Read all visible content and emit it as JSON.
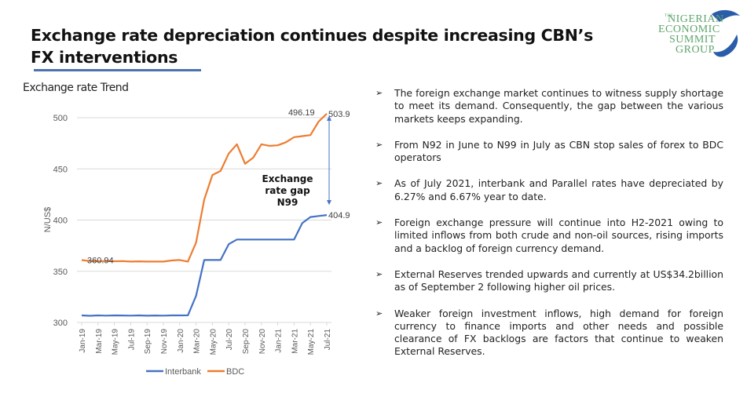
{
  "header": {
    "title_line1": "Exchange rate depreciation continues despite increasing CBN’s",
    "title_line2": "FX interventions"
  },
  "logo": {
    "small": "THE",
    "line1": "NIGERIAN",
    "line2": "ECONOMIC",
    "line3": "SUMMIT",
    "line4": "GROUP",
    "icon": "nesg-swoosh-icon",
    "color_text": "#5da56a",
    "color_swoosh": "#2a5caa"
  },
  "chart_data": {
    "type": "line",
    "title": "Exchange rate Trend",
    "xlabel": "",
    "ylabel": "N/US$",
    "ylim": [
      300,
      510
    ],
    "yticks": [
      300,
      350,
      400,
      450,
      500
    ],
    "grid": true,
    "legend_position": "bottom",
    "x": [
      "Jan-19",
      "Feb-19",
      "Mar-19",
      "Apr-19",
      "May-19",
      "Jun-19",
      "Jul-19",
      "Aug-19",
      "Sep-19",
      "Oct-19",
      "Nov-19",
      "Dec-19",
      "Jan-20",
      "Feb-20",
      "Mar-20",
      "Apr-20",
      "May-20",
      "Jun-20",
      "Jul-20",
      "Aug-20",
      "Sep-20",
      "Oct-20",
      "Nov-20",
      "Dec-20",
      "Jan-21",
      "Feb-21",
      "Mar-21",
      "Apr-21",
      "May-21",
      "Jun-21",
      "Jul-21"
    ],
    "xtick_labels": [
      "Jan-19",
      "Mar-19",
      "May-19",
      "Jul-19",
      "Sep-19",
      "Nov-19",
      "Jan-20",
      "Mar-20",
      "May-20",
      "Jul-20",
      "Sep-20",
      "Nov-20",
      "Jan-21",
      "Mar-21",
      "May-21",
      "Jul-21"
    ],
    "series": [
      {
        "name": "Interbank",
        "color": "#4472c4",
        "values": [
          306.9,
          306.5,
          306.9,
          306.7,
          306.9,
          306.8,
          306.7,
          306.9,
          306.6,
          306.8,
          306.7,
          306.9,
          306.9,
          307.0,
          326.0,
          361.0,
          361.0,
          361.0,
          376.5,
          381.0,
          381.0,
          381.0,
          381.0,
          381.0,
          381.0,
          381.0,
          381.0,
          397.0,
          403.0,
          404.0,
          404.9
        ]
      },
      {
        "name": "BDC",
        "color": "#ed7d31",
        "values": [
          360.94,
          360.0,
          359.8,
          360.0,
          359.8,
          359.9,
          359.5,
          359.7,
          359.5,
          359.5,
          359.5,
          360.5,
          361.0,
          359.5,
          378.0,
          420.0,
          444.0,
          448.0,
          465.0,
          474.0,
          455.0,
          461.0,
          474.0,
          472.5,
          473.0,
          476.0,
          481.0,
          482.0,
          483.0,
          496.19,
          503.9
        ]
      }
    ],
    "data_labels": [
      {
        "series": "BDC",
        "x": "Jan-19",
        "text": "360.94"
      },
      {
        "series": "BDC",
        "x": "Jun-21",
        "text": "496.19"
      },
      {
        "series": "BDC",
        "x": "Jul-21",
        "text": "503.9"
      },
      {
        "series": "Interbank",
        "x": "Jul-21",
        "text": "404.9"
      }
    ],
    "annotation": {
      "lines": [
        "Exchange",
        "rate gap",
        "N99"
      ],
      "arrow_from": 503.9,
      "arrow_to": 404.9,
      "arrow_color": "#4472c4"
    }
  },
  "bullets": [
    "The foreign exchange market continues to witness supply shortage to meet its demand. Consequently, the gap between the various markets keeps expanding.",
    "From N92 in June to N99 in July as CBN stop sales of forex to BDC operators",
    "As of July 2021, interbank and Parallel rates have depreciated by 6.27% and 6.67% year to date.",
    "Foreign exchange pressure will continue into H2-2021 owing to limited inflows from both crude and non-oil sources, rising imports and a backlog of foreign currency demand.",
    "External Reserves trended upwards and currently at US$34.2billion as of September 2 following higher oil prices.",
    "Weaker foreign investment inflows, high demand for foreign currency to finance imports and other needs and possible clearance of FX backlogs are factors that continue to weaken External Reserves."
  ],
  "bullet_marker": "➢"
}
